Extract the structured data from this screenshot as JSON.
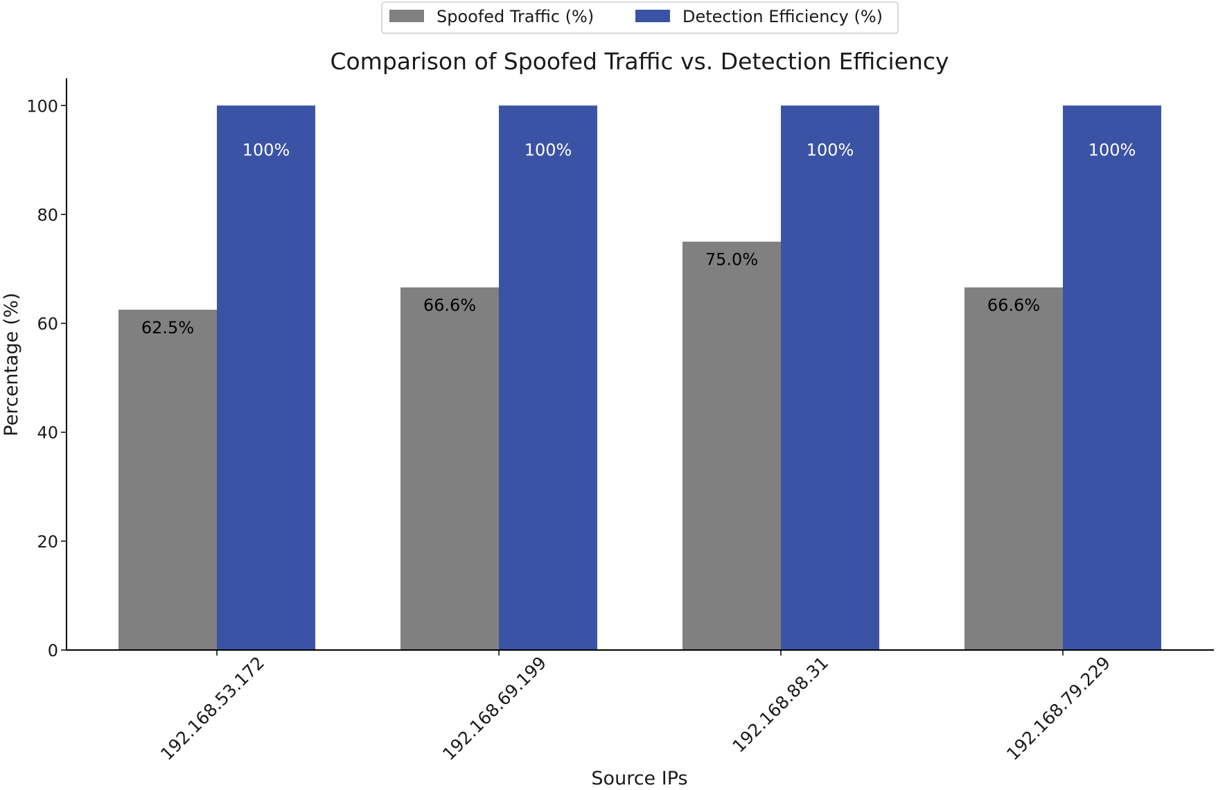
{
  "chart_data": {
    "type": "bar",
    "title": "Comparison of Spoofed Traffic vs. Detection Efficiency",
    "xlabel": "Source IPs",
    "ylabel": "Percentage (%)",
    "ylim": [
      0,
      105
    ],
    "yticks": [
      0,
      20,
      40,
      60,
      80,
      100
    ],
    "ytick_labels": [
      "0",
      "20",
      "40",
      "60",
      "80",
      "100"
    ],
    "categories": [
      "192.168.53.172",
      "192.168.69.199",
      "192.168.88.31",
      "192.168.79.229"
    ],
    "series": [
      {
        "name": "Spoofed Traffic (%)",
        "color": "#808080",
        "label_color": "#000000",
        "values": [
          62.5,
          66.6,
          75.0,
          66.6
        ],
        "data_labels": [
          "62.5%",
          "66.6%",
          "75.0%",
          "66.6%"
        ]
      },
      {
        "name": "Detection Efficiency (%)",
        "color": "#3a53a4",
        "label_color": "#ffffff",
        "values": [
          100,
          100,
          100,
          100
        ],
        "data_labels": [
          "100%",
          "100%",
          "100%",
          "100%"
        ]
      }
    ],
    "legend_position": "top-center",
    "grid": false
  }
}
